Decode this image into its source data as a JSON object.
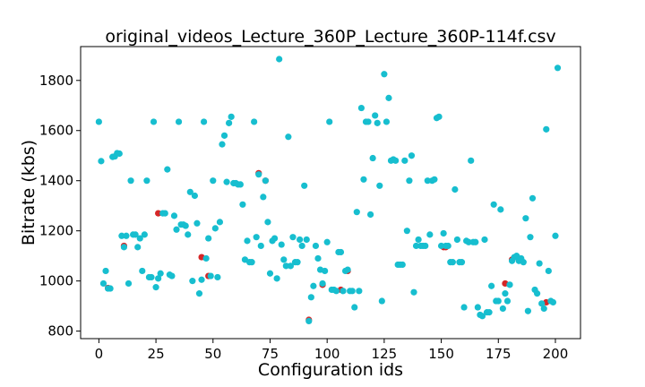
{
  "chart_data": {
    "type": "scatter",
    "title": "original_videos_Lecture_360P_Lecture_360P-114f.csv",
    "xlabel": "Configuration ids",
    "ylabel": "Bitrate (kbs)",
    "xlim": [
      -8,
      211
    ],
    "ylim": [
      770,
      1935
    ],
    "xticks": [
      0,
      25,
      50,
      75,
      100,
      125,
      150,
      175,
      200
    ],
    "yticks": [
      800,
      1000,
      1200,
      1400,
      1600,
      1800
    ],
    "grid": false,
    "legend": "none",
    "colors": {
      "primary": "#17becf",
      "secondary": "#d62728"
    },
    "series": [
      {
        "color": "#d62728",
        "points": [
          [
            4,
            972
          ],
          [
            11,
            1140
          ],
          [
            26,
            1270
          ],
          [
            45,
            1095
          ],
          [
            48,
            1020
          ],
          [
            70,
            1430
          ],
          [
            73,
            1400
          ],
          [
            92,
            845
          ],
          [
            98,
            985
          ],
          [
            106,
            965
          ],
          [
            109,
            1040
          ],
          [
            151,
            1135
          ],
          [
            152,
            1135
          ],
          [
            178,
            990
          ],
          [
            181,
            1085
          ],
          [
            184,
            1085
          ],
          [
            196,
            915
          ]
        ]
      },
      {
        "color": "#17becf",
        "points": [
          [
            0,
            1635
          ],
          [
            1,
            1478
          ],
          [
            2,
            990
          ],
          [
            3,
            1040
          ],
          [
            4,
            970
          ],
          [
            5,
            970
          ],
          [
            6,
            1495
          ],
          [
            7,
            1497
          ],
          [
            8,
            1510
          ],
          [
            9,
            1508
          ],
          [
            10,
            1180
          ],
          [
            11,
            1135
          ],
          [
            12,
            1180
          ],
          [
            13,
            990
          ],
          [
            14,
            1400
          ],
          [
            15,
            1185
          ],
          [
            16,
            1185
          ],
          [
            17,
            1135
          ],
          [
            18,
            1170
          ],
          [
            19,
            1040
          ],
          [
            20,
            1185
          ],
          [
            21,
            1400
          ],
          [
            22,
            1015
          ],
          [
            23,
            1015
          ],
          [
            24,
            1635
          ],
          [
            25,
            975
          ],
          [
            26,
            1010
          ],
          [
            27,
            1030
          ],
          [
            28,
            1270
          ],
          [
            29,
            1270
          ],
          [
            30,
            1445
          ],
          [
            31,
            1025
          ],
          [
            32,
            1020
          ],
          [
            33,
            1260
          ],
          [
            34,
            1205
          ],
          [
            35,
            1635
          ],
          [
            36,
            1225
          ],
          [
            37,
            1225
          ],
          [
            38,
            1220
          ],
          [
            39,
            1185
          ],
          [
            40,
            1355
          ],
          [
            41,
            1000
          ],
          [
            42,
            1340
          ],
          [
            43,
            1230
          ],
          [
            44,
            950
          ],
          [
            45,
            1005
          ],
          [
            46,
            1635
          ],
          [
            47,
            1090
          ],
          [
            48,
            1170
          ],
          [
            49,
            1020
          ],
          [
            50,
            1400
          ],
          [
            51,
            1210
          ],
          [
            52,
            1015
          ],
          [
            53,
            1235
          ],
          [
            54,
            1545
          ],
          [
            55,
            1580
          ],
          [
            56,
            1395
          ],
          [
            57,
            1630
          ],
          [
            58,
            1655
          ],
          [
            59,
            1390
          ],
          [
            60,
            1390
          ],
          [
            61,
            1385
          ],
          [
            62,
            1385
          ],
          [
            63,
            1305
          ],
          [
            64,
            1085
          ],
          [
            65,
            1160
          ],
          [
            66,
            1075
          ],
          [
            67,
            1075
          ],
          [
            68,
            1635
          ],
          [
            69,
            1175
          ],
          [
            70,
            1425
          ],
          [
            71,
            1140
          ],
          [
            72,
            1335
          ],
          [
            73,
            1400
          ],
          [
            74,
            1235
          ],
          [
            75,
            1030
          ],
          [
            76,
            1160
          ],
          [
            77,
            1170
          ],
          [
            78,
            1010
          ],
          [
            79,
            1885
          ],
          [
            80,
            1145
          ],
          [
            81,
            1085
          ],
          [
            82,
            1060
          ],
          [
            83,
            1575
          ],
          [
            84,
            1060
          ],
          [
            85,
            1175
          ],
          [
            86,
            1075
          ],
          [
            87,
            1075
          ],
          [
            88,
            1165
          ],
          [
            89,
            1140
          ],
          [
            90,
            1380
          ],
          [
            91,
            1165
          ],
          [
            92,
            840
          ],
          [
            93,
            935
          ],
          [
            94,
            980
          ],
          [
            95,
            1140
          ],
          [
            96,
            1090
          ],
          [
            97,
            1045
          ],
          [
            98,
            990
          ],
          [
            99,
            1040
          ],
          [
            100,
            1155
          ],
          [
            101,
            1635
          ],
          [
            102,
            965
          ],
          [
            103,
            965
          ],
          [
            104,
            960
          ],
          [
            105,
            1115
          ],
          [
            106,
            1115
          ],
          [
            107,
            960
          ],
          [
            108,
            1040
          ],
          [
            109,
            1045
          ],
          [
            110,
            960
          ],
          [
            111,
            960
          ],
          [
            112,
            895
          ],
          [
            113,
            1275
          ],
          [
            114,
            960
          ],
          [
            115,
            1690
          ],
          [
            116,
            1405
          ],
          [
            117,
            1635
          ],
          [
            118,
            1635
          ],
          [
            119,
            1265
          ],
          [
            120,
            1490
          ],
          [
            121,
            1660
          ],
          [
            122,
            1630
          ],
          [
            123,
            1380
          ],
          [
            124,
            920
          ],
          [
            125,
            1825
          ],
          [
            126,
            1635
          ],
          [
            127,
            1730
          ],
          [
            128,
            1480
          ],
          [
            129,
            1485
          ],
          [
            130,
            1480
          ],
          [
            131,
            1065
          ],
          [
            132,
            1065
          ],
          [
            133,
            1065
          ],
          [
            134,
            1480
          ],
          [
            135,
            1200
          ],
          [
            136,
            1400
          ],
          [
            137,
            1500
          ],
          [
            138,
            955
          ],
          [
            139,
            1140
          ],
          [
            140,
            1165
          ],
          [
            141,
            1140
          ],
          [
            142,
            1140
          ],
          [
            143,
            1140
          ],
          [
            144,
            1400
          ],
          [
            145,
            1185
          ],
          [
            146,
            1400
          ],
          [
            147,
            1405
          ],
          [
            148,
            1650
          ],
          [
            149,
            1655
          ],
          [
            150,
            1140
          ],
          [
            151,
            1190
          ],
          [
            152,
            1140
          ],
          [
            153,
            1140
          ],
          [
            154,
            1075
          ],
          [
            155,
            1075
          ],
          [
            156,
            1365
          ],
          [
            157,
            1165
          ],
          [
            158,
            1075
          ],
          [
            159,
            1075
          ],
          [
            160,
            895
          ],
          [
            161,
            1160
          ],
          [
            162,
            1155
          ],
          [
            163,
            1480
          ],
          [
            164,
            1155
          ],
          [
            165,
            1155
          ],
          [
            166,
            895
          ],
          [
            167,
            865
          ],
          [
            168,
            860
          ],
          [
            169,
            1165
          ],
          [
            170,
            875
          ],
          [
            171,
            875
          ],
          [
            172,
            980
          ],
          [
            173,
            1305
          ],
          [
            174,
            920
          ],
          [
            175,
            920
          ],
          [
            176,
            1285
          ],
          [
            177,
            890
          ],
          [
            178,
            950
          ],
          [
            179,
            920
          ],
          [
            180,
            985
          ],
          [
            181,
            1080
          ],
          [
            182,
            1095
          ],
          [
            183,
            1100
          ],
          [
            184,
            1080
          ],
          [
            185,
            1090
          ],
          [
            186,
            1075
          ],
          [
            187,
            1250
          ],
          [
            188,
            880
          ],
          [
            189,
            1175
          ],
          [
            190,
            1330
          ],
          [
            191,
            965
          ],
          [
            192,
            950
          ],
          [
            193,
            1070
          ],
          [
            194,
            910
          ],
          [
            195,
            890
          ],
          [
            196,
            1605
          ],
          [
            197,
            1040
          ],
          [
            198,
            920
          ],
          [
            199,
            915
          ],
          [
            200,
            1180
          ],
          [
            201,
            1850
          ]
        ]
      }
    ]
  }
}
